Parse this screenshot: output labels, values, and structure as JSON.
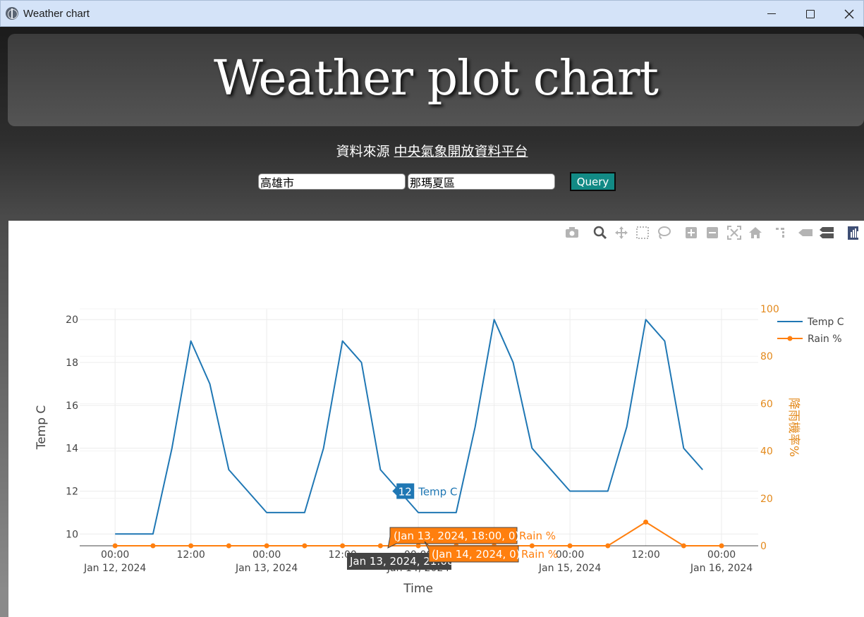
{
  "window": {
    "title": "Weather chart",
    "icon": "globe-icon"
  },
  "header": {
    "title": "Weather plot chart",
    "source_prefix": "資料來源",
    "source_link": "中央氣象開放資料平台"
  },
  "query": {
    "city": "高雄市",
    "district": "那瑪夏區",
    "button_label": "Query"
  },
  "modebar": {
    "icons": [
      "camera-icon",
      "zoom-icon",
      "pan-icon",
      "box-select-icon",
      "lasso-icon",
      "zoom-in-icon",
      "zoom-out-icon",
      "autoscale-icon",
      "reset-axes-icon",
      "spike-lines-icon",
      "hover-closest-icon",
      "hover-compare-icon",
      "plotly-logo-icon"
    ]
  },
  "colors": {
    "temp": "#1f77b4",
    "rain": "#ff7f0e",
    "rain_axis": "#e3891b"
  },
  "chart_data": {
    "type": "line",
    "xlabel": "Time",
    "ylabel": "Temp C",
    "y2label": "降雨機率%",
    "x_ticks": [
      {
        "t": 0,
        "line1": "00:00",
        "line2": "Jan 12, 2024"
      },
      {
        "t": 12,
        "line1": "12:00",
        "line2": ""
      },
      {
        "t": 24,
        "line1": "00:00",
        "line2": "Jan 13, 2024"
      },
      {
        "t": 36,
        "line1": "12:00",
        "line2": ""
      },
      {
        "t": 48,
        "line1": "00:00",
        "line2": "Jan 14, 2024"
      },
      {
        "t": 60,
        "line1": "12:00",
        "line2": ""
      },
      {
        "t": 72,
        "line1": "00:00",
        "line2": "Jan 15, 2024"
      },
      {
        "t": 84,
        "line1": "12:00",
        "line2": ""
      },
      {
        "t": 96,
        "line1": "00:00",
        "line2": "Jan 16, 2024"
      }
    ],
    "y_ticks": [
      10,
      12,
      14,
      16,
      18,
      20
    ],
    "y2_ticks": [
      0,
      20,
      40,
      60,
      80,
      100
    ],
    "ylim": [
      9.45,
      20.5
    ],
    "y2lim": [
      0,
      100
    ],
    "xlim": [
      -5.6,
      101.8
    ],
    "series": [
      {
        "name": "Temp C",
        "axis": "y",
        "x_hours": [
          0,
          6,
          9,
          12,
          15,
          18,
          24,
          30,
          33,
          36,
          39,
          42,
          48,
          54,
          57,
          60,
          63,
          66,
          72,
          78,
          81,
          84,
          87,
          90,
          93
        ],
        "values": [
          10,
          10,
          14,
          19,
          17,
          13,
          11,
          11,
          14,
          19,
          18,
          13,
          11,
          11,
          15,
          20,
          18,
          14,
          12,
          12,
          15,
          20,
          19,
          14,
          13
        ]
      },
      {
        "name": "Rain %",
        "axis": "y2",
        "x_hours": [
          0,
          6,
          12,
          18,
          24,
          30,
          36,
          42,
          48,
          54,
          60,
          66,
          72,
          78,
          84,
          90,
          96
        ],
        "values": [
          0,
          0,
          0,
          0,
          0,
          0,
          0,
          0,
          0,
          0,
          0,
          0,
          0,
          0,
          10,
          0,
          0
        ]
      }
    ],
    "legend_position": "top-right",
    "grid": true,
    "hover": {
      "x_label": "Jan 13, 2024, 21:00",
      "temp_value": "12",
      "temp_name": "Temp C",
      "rain_label_1": "(Jan 13, 2024, 18:00, 0)",
      "rain_label_2": "(Jan 14, 2024, 0)",
      "rain_name": "Rain %"
    }
  }
}
